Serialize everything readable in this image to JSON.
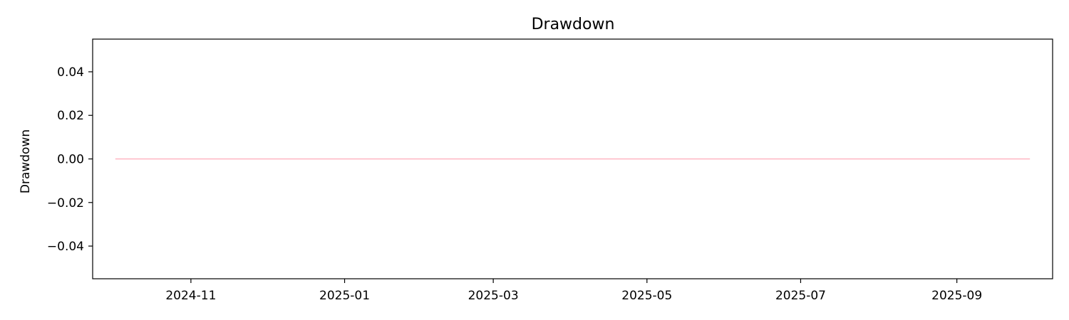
{
  "chart_data": {
    "type": "line",
    "title": "Drawdown",
    "xlabel": "",
    "ylabel": "Drawdown",
    "x_axis_type": "date",
    "xlim": [
      "2024-09-23",
      "2025-10-09"
    ],
    "ylim": [
      -0.055,
      0.055
    ],
    "x_ticks": [
      {
        "value": "2024-11-01",
        "label": "2024-11"
      },
      {
        "value": "2025-01-01",
        "label": "2025-01"
      },
      {
        "value": "2025-03-01",
        "label": "2025-03"
      },
      {
        "value": "2025-05-01",
        "label": "2025-05"
      },
      {
        "value": "2025-07-01",
        "label": "2025-07"
      },
      {
        "value": "2025-09-01",
        "label": "2025-09"
      }
    ],
    "y_ticks": [
      {
        "value": 0.04,
        "label": "0.04"
      },
      {
        "value": 0.02,
        "label": "0.02"
      },
      {
        "value": 0.0,
        "label": "0.00"
      },
      {
        "value": -0.02,
        "label": "−0.02"
      },
      {
        "value": -0.04,
        "label": "−0.04"
      }
    ],
    "grid": false,
    "legend": "none",
    "series": [
      {
        "color": "#ffb6c1",
        "x": [
          "2024-10-02",
          "2025-09-30"
        ],
        "y": [
          0.0,
          0.0
        ]
      }
    ]
  }
}
